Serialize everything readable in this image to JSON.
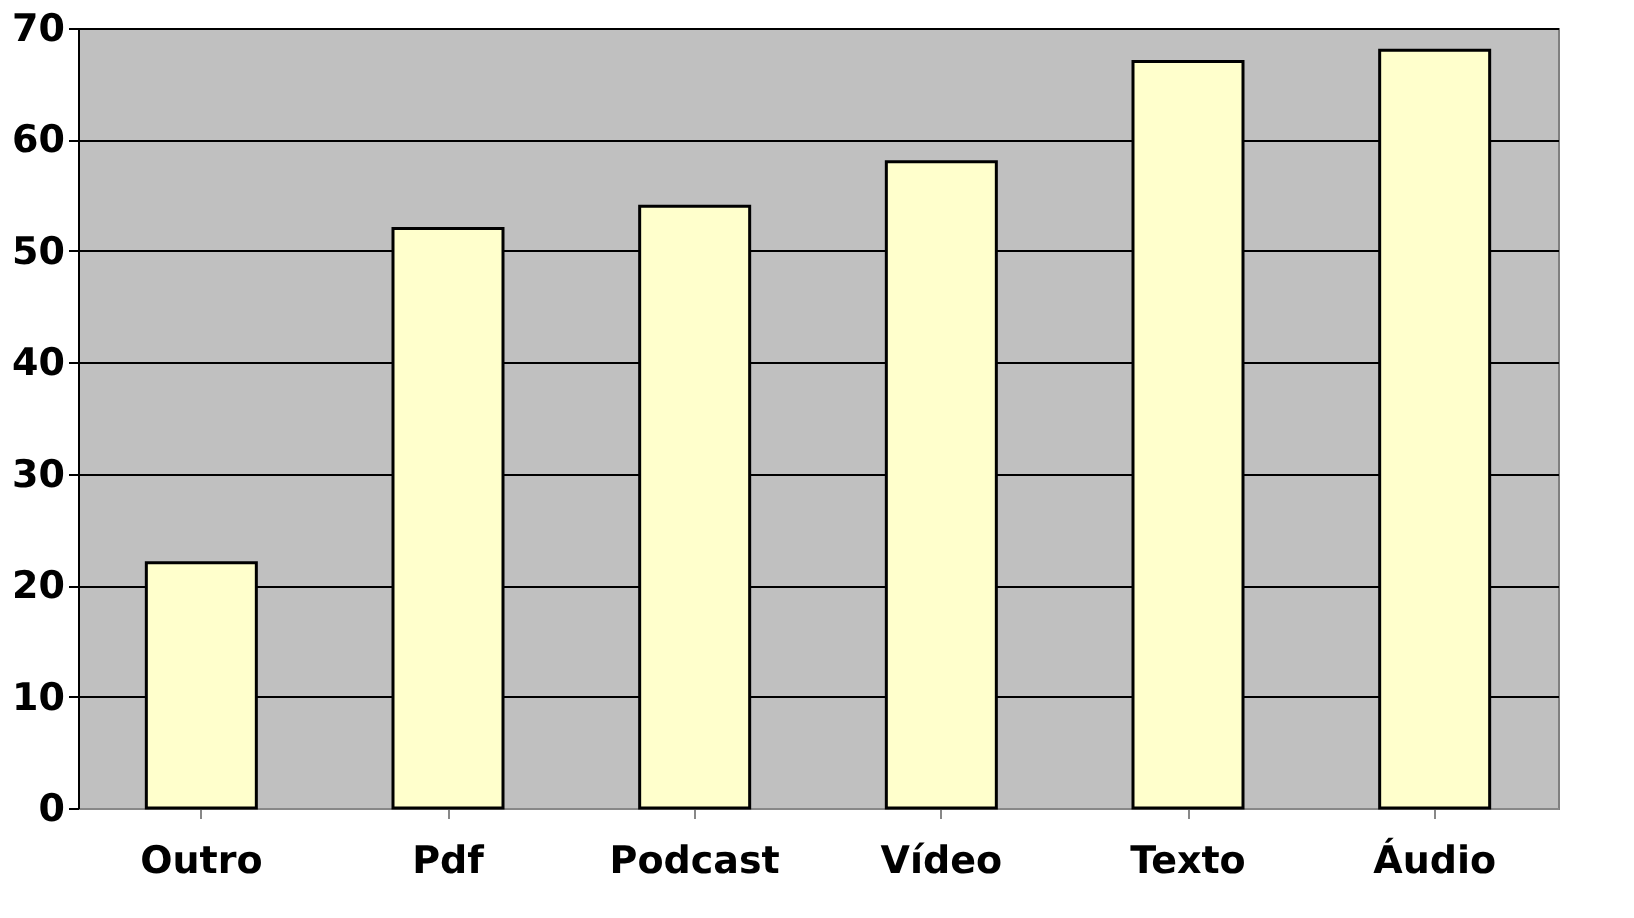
{
  "chart_data": {
    "type": "bar",
    "categories": [
      "Outro",
      "Pdf",
      "Podcast",
      "Vídeo",
      "Texto",
      "Áudio"
    ],
    "values": [
      22,
      52,
      54,
      58,
      67,
      68
    ],
    "color": "#ffffcc",
    "ylim": [
      0,
      70
    ],
    "yticks": [
      0,
      10,
      20,
      30,
      40,
      50,
      60,
      70
    ],
    "grid": "y"
  }
}
